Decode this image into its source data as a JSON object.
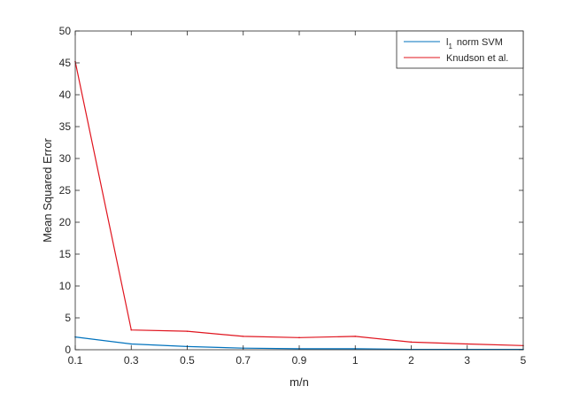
{
  "chart_data": {
    "type": "line",
    "categories": [
      "0.1",
      "0.3",
      "0.5",
      "0.7",
      "0.9",
      "1",
      "2",
      "3",
      "5"
    ],
    "xlabel": "m/n",
    "ylabel": "Mean Squared Error",
    "ylim": [
      0,
      50
    ],
    "yticks": [
      0,
      5,
      10,
      15,
      20,
      25,
      30,
      35,
      40,
      45,
      50
    ],
    "grid": false,
    "legend_position": "top-right",
    "series": [
      {
        "name": "norm SVM",
        "name_prefix": "l",
        "name_subscript": "1",
        "color": "#0072bd",
        "values": [
          2.0,
          0.9,
          0.5,
          0.25,
          0.15,
          0.15,
          0.05,
          0.05,
          0.05
        ]
      },
      {
        "name": "Knudson et al.",
        "color": "#e0141e",
        "values": [
          45.2,
          3.1,
          2.9,
          2.1,
          1.9,
          2.1,
          1.2,
          0.9,
          0.65
        ]
      }
    ]
  }
}
